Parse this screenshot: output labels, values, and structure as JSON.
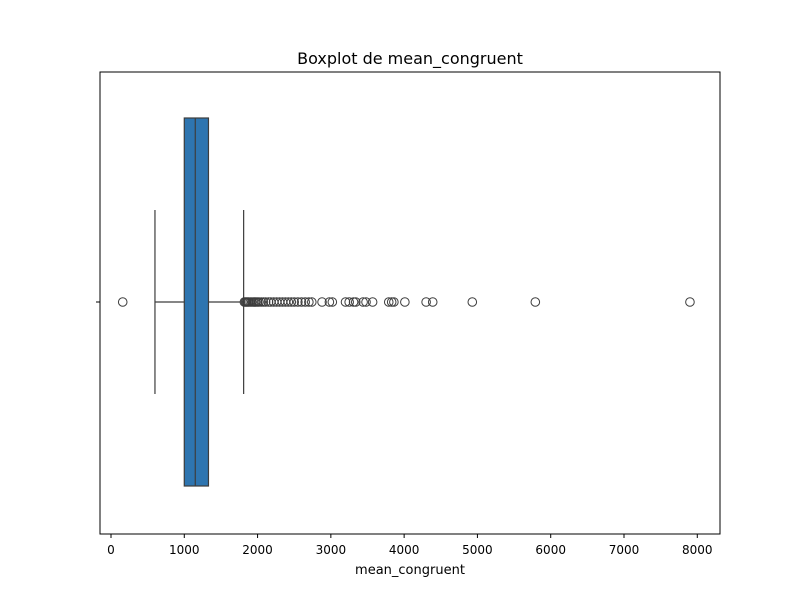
{
  "chart_data": {
    "type": "boxplot",
    "title": "Boxplot de mean_congruent",
    "xlabel": "mean_congruent",
    "ylabel": "",
    "orientation": "horizontal",
    "xlim": [
      -150,
      8310
    ],
    "xticks": [
      0,
      1000,
      2000,
      3000,
      4000,
      5000,
      6000,
      7000,
      8000
    ],
    "grid": false,
    "box": {
      "whisker_low": 600,
      "q1": 1000,
      "median": 1150,
      "q3": 1330,
      "whisker_high": 1810
    },
    "outliers": [
      160,
      1820,
      1835,
      1850,
      1865,
      1880,
      1900,
      1920,
      1940,
      1960,
      1980,
      2000,
      2020,
      2050,
      2080,
      2110,
      2150,
      2180,
      2220,
      2260,
      2300,
      2340,
      2380,
      2420,
      2460,
      2500,
      2550,
      2600,
      2650,
      2700,
      2740,
      2880,
      2980,
      3020,
      3200,
      3250,
      3310,
      3340,
      3440,
      3480,
      3570,
      3790,
      3830,
      3860,
      4010,
      4300,
      4390,
      4930,
      5790,
      7900
    ],
    "colors": {
      "box_fill": "#2e75b0",
      "line": "#3d3d3d"
    }
  }
}
